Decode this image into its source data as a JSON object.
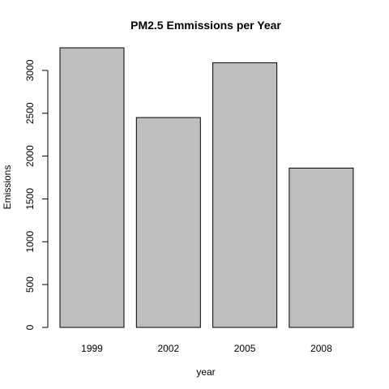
{
  "chart_data": {
    "type": "bar",
    "title": "PM2.5 Emmissions per Year",
    "xlabel": "year",
    "ylabel": "Emissions",
    "categories": [
      "1999",
      "2002",
      "2005",
      "2008"
    ],
    "values": [
      3264,
      2450,
      3090,
      1860
    ],
    "ylim": [
      0,
      3264
    ],
    "yticks": [
      0,
      500,
      1000,
      1500,
      2000,
      2500,
      3000
    ],
    "grid": false,
    "legend": "none",
    "bar_color": "#bebebe",
    "border_color": "#000000"
  }
}
